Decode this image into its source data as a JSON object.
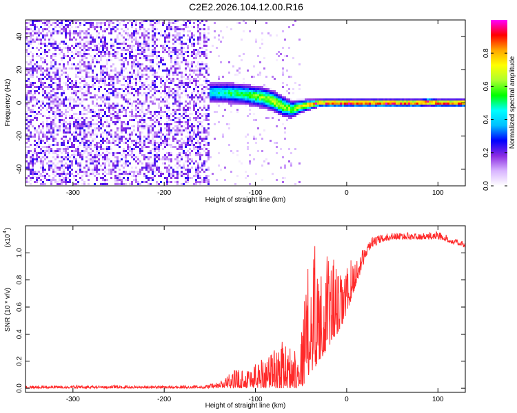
{
  "figure": {
    "title": "C2E2.2026.104.12.00.R16"
  },
  "chart_data": [
    {
      "type": "heatmap",
      "title": "C2E2.2026.104.12.00.R16",
      "xlabel": "Height of straight line (km)",
      "ylabel": "Frequency (Hz)",
      "xlim": [
        -352,
        130
      ],
      "ylim": [
        -50,
        50
      ],
      "x_ticks": [
        -300,
        -200,
        -100,
        0,
        100
      ],
      "y_ticks": [
        -40,
        -20,
        0,
        20,
        40
      ],
      "colorbar": {
        "label": "Normalized spectral amplitude",
        "range": [
          0.0,
          1.0
        ],
        "ticks": [
          0.0,
          0.2,
          0.4,
          0.6,
          0.8
        ],
        "colormap": [
          "#ffffff",
          "#d8b4ff",
          "#8a2be2",
          "#0000ff",
          "#00bfff",
          "#00ffff",
          "#00ff00",
          "#adff2f",
          "#ffff00",
          "#ffa500",
          "#ff0000",
          "#ff00ff"
        ]
      },
      "regions": [
        {
          "description": "noise",
          "x_range": [
            -352,
            -150
          ],
          "f_range": [
            -50,
            50
          ],
          "amplitude": [
            0.0,
            0.25
          ]
        },
        {
          "description": "sparse",
          "x_range": [
            -150,
            -50
          ],
          "f_range": [
            -50,
            50
          ],
          "amplitude": [
            0.0,
            0.15
          ]
        },
        {
          "description": "sparse column",
          "x_range": [
            -70,
            -62
          ],
          "f_range": [
            -50,
            45
          ],
          "amplitude": [
            0.0,
            0.15
          ]
        }
      ],
      "signal_track": {
        "x": [
          -150,
          -130,
          -110,
          -100,
          -90,
          -80,
          -70,
          -60,
          -50,
          -40,
          -30,
          -20,
          -10,
          0,
          20,
          40,
          60,
          80,
          90,
          100,
          110,
          130
        ],
        "center_freq": [
          6,
          6,
          5,
          4,
          3,
          1,
          -2,
          -4,
          -2,
          -1,
          0,
          0,
          0,
          0,
          0,
          0,
          0,
          0,
          0.5,
          0,
          0,
          0
        ],
        "peak_amplitude": [
          0.35,
          0.45,
          0.5,
          0.55,
          0.6,
          0.65,
          0.6,
          0.55,
          0.7,
          0.8,
          0.9,
          0.95,
          0.95,
          0.95,
          0.95,
          0.95,
          0.95,
          0.9,
          0.95,
          0.9,
          0.9,
          0.9
        ],
        "width_hz": [
          8,
          8,
          8,
          8,
          8,
          8,
          8,
          7,
          5,
          4,
          3,
          3,
          3,
          3,
          3,
          3,
          3,
          3,
          3,
          3,
          3,
          3
        ]
      }
    },
    {
      "type": "line",
      "xlabel": "Height of straight line (km)",
      "ylabel": "SNR (10 * v/v)",
      "y_multiplier": "(x10",
      "y_multiplier_exp": "4",
      "xlim": [
        -352,
        130
      ],
      "ylim": [
        -0.03,
        1.2
      ],
      "x_ticks": [
        -300,
        -200,
        -100,
        0,
        100
      ],
      "y_ticks": [
        0.0,
        0.2,
        0.4,
        0.6,
        0.8,
        1.0
      ],
      "color": "#ff2a2a",
      "envelope": {
        "x": [
          -352,
          -160,
          -150,
          -140,
          -130,
          -120,
          -110,
          -100,
          -90,
          -80,
          -70,
          -60,
          -50,
          -45,
          -40,
          -35,
          -30,
          -25,
          -20,
          -15,
          -10,
          -5,
          0,
          5,
          10,
          15,
          20,
          25,
          30,
          40,
          50,
          60,
          70,
          80,
          90,
          100,
          110,
          120,
          130
        ],
        "low": [
          0.0,
          0.0,
          0.0,
          0.0,
          0.0,
          0.0,
          0.0,
          0.0,
          0.0,
          0.0,
          0.0,
          0.0,
          0.0,
          0.05,
          0.1,
          0.15,
          0.2,
          0.25,
          0.3,
          0.35,
          0.4,
          0.45,
          0.55,
          0.65,
          0.75,
          0.85,
          0.95,
          1.02,
          1.05,
          1.08,
          1.1,
          1.1,
          1.1,
          1.1,
          1.1,
          1.1,
          1.08,
          1.06,
          1.04
        ],
        "high": [
          0.02,
          0.02,
          0.03,
          0.05,
          0.1,
          0.15,
          0.15,
          0.2,
          0.25,
          0.3,
          0.35,
          0.3,
          0.4,
          0.8,
          1.0,
          1.17,
          0.9,
          0.8,
          1.05,
          1.0,
          0.85,
          0.85,
          0.9,
          0.95,
          0.95,
          1.0,
          1.05,
          1.1,
          1.12,
          1.14,
          1.15,
          1.15,
          1.15,
          1.14,
          1.15,
          1.17,
          1.13,
          1.1,
          1.08
        ]
      }
    }
  ]
}
